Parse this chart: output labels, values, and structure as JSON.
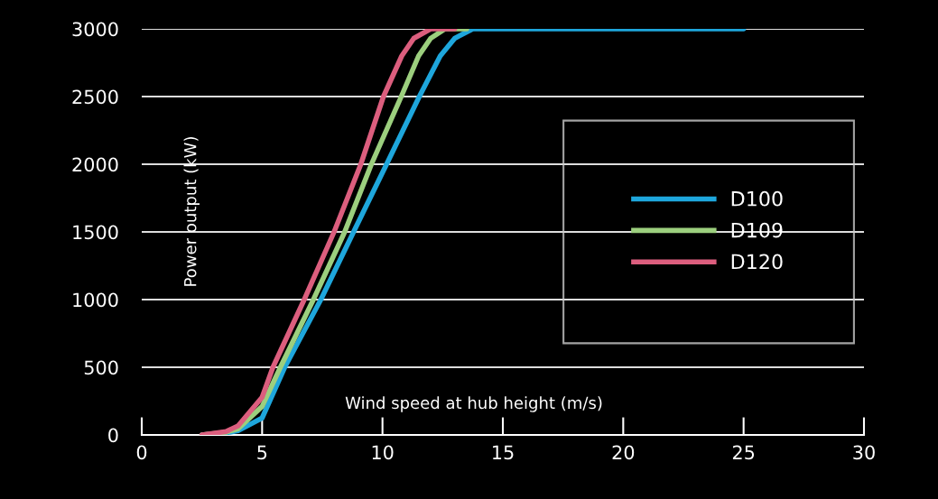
{
  "chart_data": {
    "type": "line",
    "xlabel": "Wind speed at hub height (m/s)",
    "ylabel": "Power output (kW)",
    "xlim": [
      0,
      30
    ],
    "xticks": [
      0,
      5,
      10,
      15,
      20,
      25,
      30
    ],
    "ylim": [
      0,
      3000
    ],
    "yticks": [
      0,
      500,
      1000,
      1500,
      2000,
      2500,
      3000
    ],
    "grid": "y",
    "legend": "right",
    "marker": "none",
    "line_style": "solid",
    "series": [
      {
        "name": "D100",
        "color": "#1ea6dc",
        "x": [
          2.5,
          3.5,
          4,
          5,
          5.94,
          7.44,
          8.8,
          10.17,
          11.53,
          12.4,
          13,
          13.75,
          15,
          25
        ],
        "values": [
          0,
          15,
          31,
          125,
          500,
          1000,
          1500,
          2000,
          2500,
          2800,
          2930,
          3000,
          3000,
          3000
        ]
      },
      {
        "name": "D109",
        "color": "#9ccf7e",
        "x": [
          2.5,
          3.5,
          4,
          5,
          5.76,
          7.13,
          8.43,
          9.54,
          10.78,
          11.5,
          12,
          12.6,
          13.5
        ],
        "values": [
          0,
          20,
          45,
          211,
          500,
          1000,
          1500,
          2000,
          2500,
          2800,
          2930,
          3000,
          3000
        ]
      },
      {
        "name": "D120",
        "color": "#dc5e7e",
        "x": [
          2.5,
          3.5,
          4,
          5,
          5.45,
          6.75,
          7.99,
          9.1,
          10.04,
          10.8,
          11.3,
          12,
          13
        ],
        "values": [
          0,
          25,
          67,
          278,
          500,
          1000,
          1500,
          2000,
          2500,
          2800,
          2930,
          3000,
          3000
        ]
      }
    ]
  }
}
